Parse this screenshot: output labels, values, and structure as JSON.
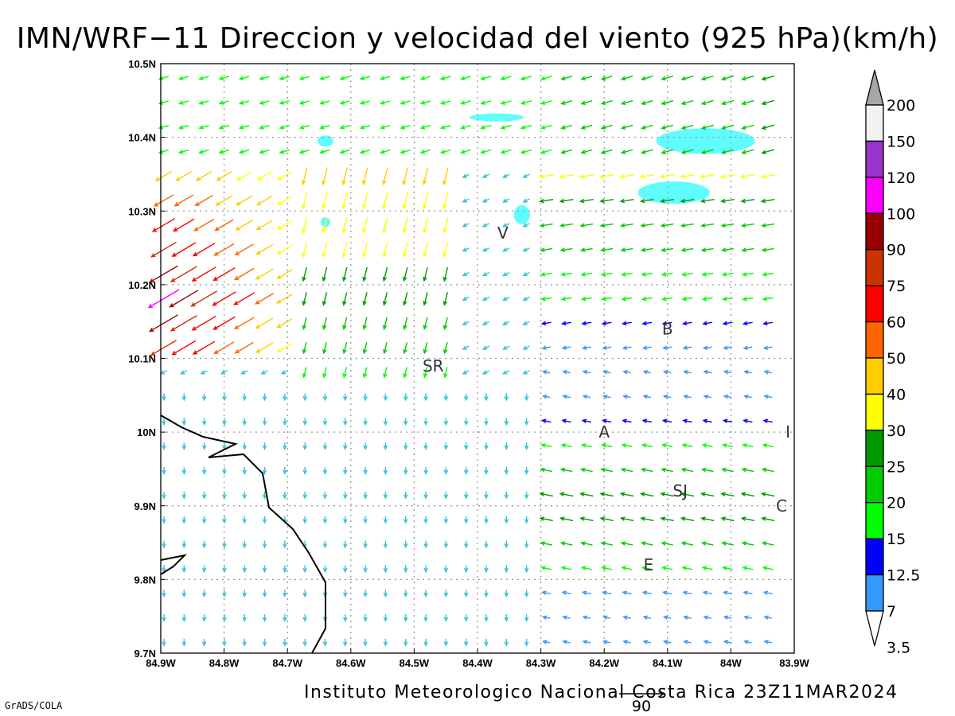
{
  "title": "IMN/WRF−11 Direccion y velocidad del viento (925 hPa)(km/h)",
  "footer": "Instituto Meteorologico Nacional Costa Rica  23Z11MAR2024",
  "credit": "GrADS/COLA",
  "reference_vector": {
    "label": "90",
    "value": 90
  },
  "chart_data": {
    "type": "vector_field",
    "title": "IMN/WRF−11 Direccion y velocidad del viento (925 hPa)(km/h)",
    "xlabel": "",
    "ylabel": "",
    "xlim": [
      -84.9,
      -83.9
    ],
    "ylim": [
      9.7,
      10.5
    ],
    "grid": true,
    "x_ticks": [
      "84.9W",
      "84.8W",
      "84.7W",
      "84.6W",
      "84.5W",
      "84.4W",
      "84.3W",
      "84.2W",
      "84.1W",
      "84W",
      "83.9W"
    ],
    "y_ticks": [
      "9.7N",
      "9.8N",
      "9.9N",
      "10N",
      "10.1N",
      "10.2N",
      "10.3N",
      "10.4N",
      "10.5N"
    ],
    "colorbar": {
      "labels": [
        "3.5",
        "7",
        "12.5",
        "15",
        "20",
        "25",
        "30",
        "40",
        "50",
        "60",
        "75",
        "90",
        "100",
        "120",
        "150",
        "200"
      ],
      "colors": [
        "#ffffff",
        "#5ffdff",
        "#3399ff",
        "#0000ff",
        "#00ff00",
        "#00cc00",
        "#009900",
        "#ffff00",
        "#ffcc00",
        "#ff6600",
        "#ff0000",
        "#cc3300",
        "#990000",
        "#ff00ff",
        "#9933cc",
        "#f2f2f2",
        "#a6a6a6"
      ]
    },
    "places": [
      {
        "name": "V",
        "lon": -84.36,
        "lat": 10.27
      },
      {
        "name": "SR",
        "lon": -84.47,
        "lat": 10.09
      },
      {
        "name": "B",
        "lon": -84.1,
        "lat": 10.14
      },
      {
        "name": "A",
        "lon": -84.2,
        "lat": 10.0
      },
      {
        "name": "I",
        "lon": -83.91,
        "lat": 10.0
      },
      {
        "name": "SJ",
        "lon": -84.08,
        "lat": 9.92
      },
      {
        "name": "C",
        "lon": -83.92,
        "lat": 9.9
      },
      {
        "name": "E",
        "lon": -84.13,
        "lat": 9.82
      }
    ],
    "shaded_regions_min_speed_kmh": 3.5,
    "wind_regimes": [
      {
        "region": "north band (10.35N-10.5N)",
        "direction_from": "ENE",
        "speed_kmh": [
          15,
          30
        ]
      },
      {
        "region": "northwest corner (84.9W-84.7W,10.1N-10.3N)",
        "direction_from": "NE",
        "speed_kmh": [
          40,
          110
        ]
      },
      {
        "region": "central (84.6W-84.4W,10.1N-10.3N)",
        "direction_from": "N",
        "speed_kmh": [
          15,
          45
        ]
      },
      {
        "region": "southwest (84.9W-84.3W,9.7N-10.05N)",
        "direction_from": "N",
        "speed_kmh": [
          3.5,
          15
        ]
      },
      {
        "region": "southeast (84.2W-83.9W,9.75N-10.1N)",
        "direction_from": "E",
        "speed_kmh": [
          7,
          30
        ]
      }
    ]
  }
}
